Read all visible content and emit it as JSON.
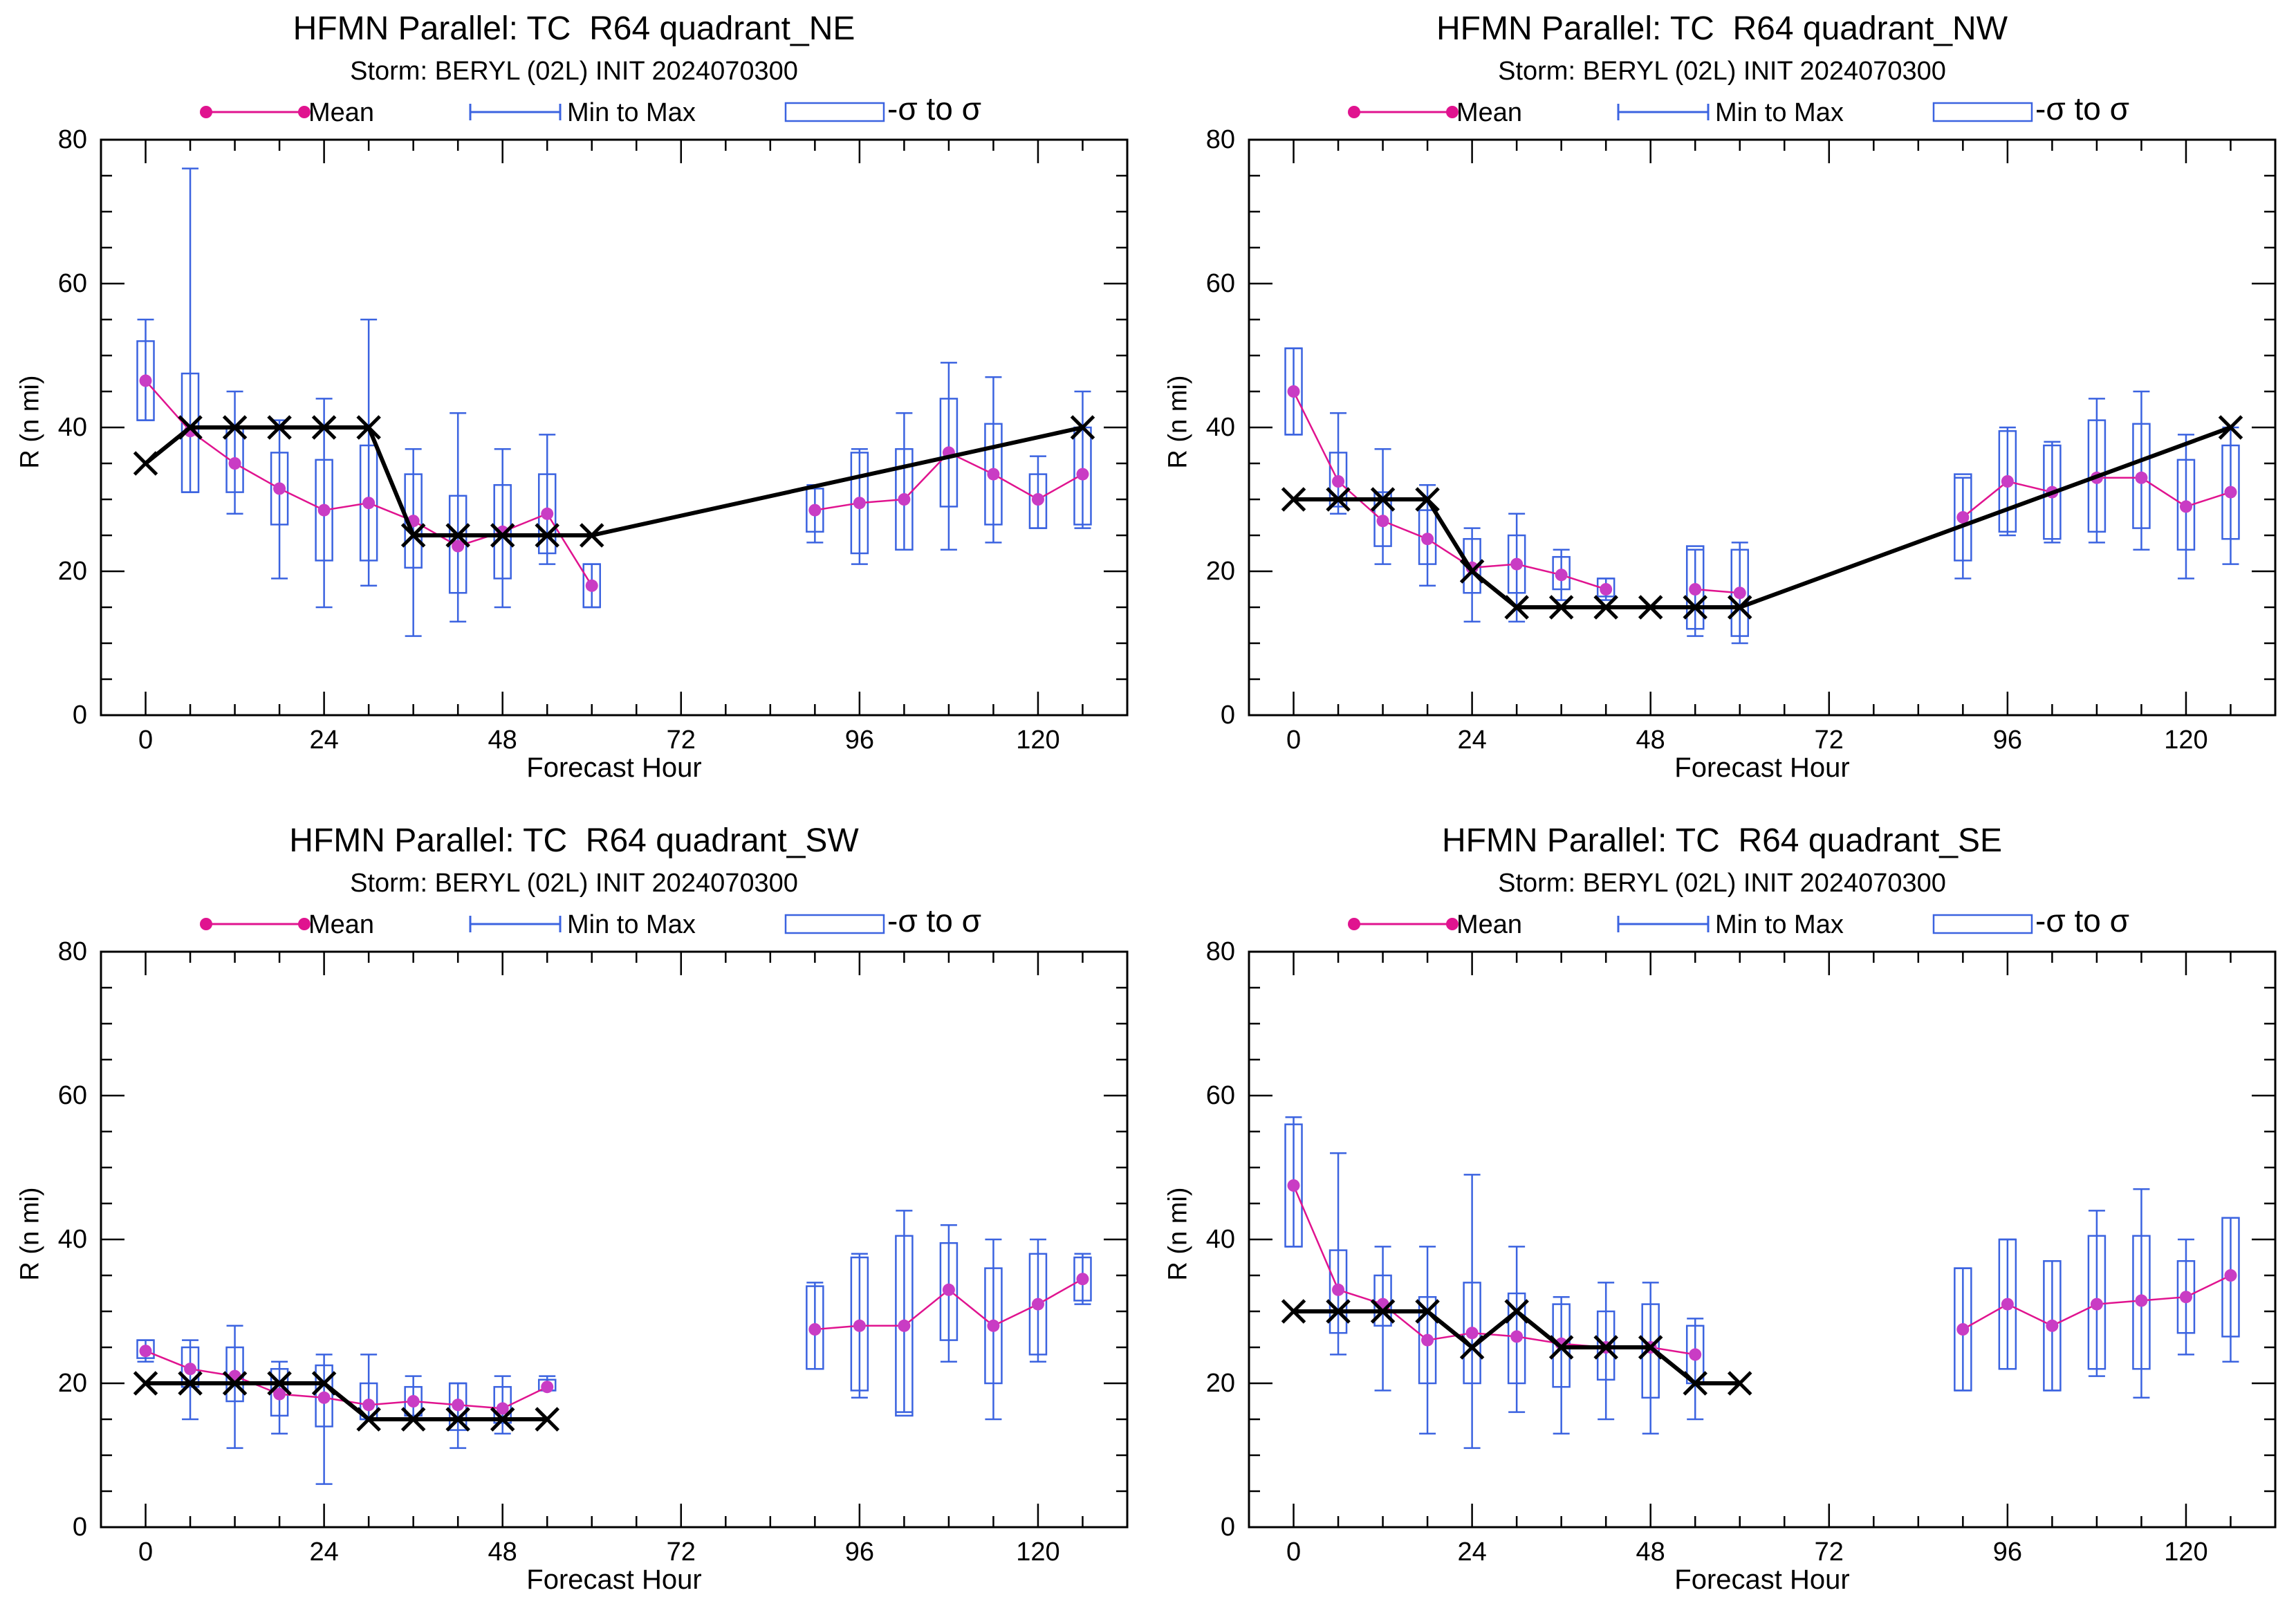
{
  "colors": {
    "mean": "#e0138f",
    "mean_marker": "#c93cc4",
    "range": "#3b63e0",
    "best_track": "#000000",
    "axes": "#000000"
  },
  "legend": {
    "mean_label": "Mean",
    "range_label": "Min to Max",
    "sigma_label": "-σ to σ"
  },
  "chart_data": [
    {
      "id": "ne",
      "type": "line",
      "title": "HFMN Parallel: TC  R64 quadrant_NE",
      "subtitle": "Storm: BERYL (02L) INIT 2024070300",
      "xlabel": "Forecast Hour",
      "ylabel": "R (n mi)",
      "xlim": [
        -6,
        132
      ],
      "ylim": [
        0,
        80
      ],
      "xticks": [
        0,
        24,
        48,
        72,
        96,
        120
      ],
      "yticks": [
        0,
        20,
        40,
        60,
        80
      ],
      "ensemble": [
        {
          "x": 0,
          "mean": 46.5,
          "min": 41,
          "max": 55,
          "sd_lo": 41,
          "sd_hi": 52
        },
        {
          "x": 6,
          "mean": 39.5,
          "min": 31,
          "max": 76,
          "sd_lo": 31,
          "sd_hi": 47.5
        },
        {
          "x": 12,
          "mean": 35,
          "min": 28,
          "max": 45,
          "sd_lo": 31,
          "sd_hi": 40
        },
        {
          "x": 18,
          "mean": 31.5,
          "min": 19,
          "max": 41,
          "sd_lo": 26.5,
          "sd_hi": 36.5
        },
        {
          "x": 24,
          "mean": 28.5,
          "min": 15,
          "max": 44,
          "sd_lo": 21.5,
          "sd_hi": 35.5
        },
        {
          "x": 30,
          "mean": 29.5,
          "min": 18,
          "max": 55,
          "sd_lo": 21.5,
          "sd_hi": 37.5
        },
        {
          "x": 36,
          "mean": 27,
          "min": 11,
          "max": 37,
          "sd_lo": 20.5,
          "sd_hi": 33.5
        },
        {
          "x": 42,
          "mean": 23.5,
          "min": 13,
          "max": 42,
          "sd_lo": 17,
          "sd_hi": 30.5
        },
        {
          "x": 48,
          "mean": 25.5,
          "min": 15,
          "max": 37,
          "sd_lo": 19,
          "sd_hi": 32
        },
        {
          "x": 54,
          "mean": 28,
          "min": 21,
          "max": 39,
          "sd_lo": 22.5,
          "sd_hi": 33.5
        },
        {
          "x": 60,
          "mean": 18,
          "min": 15,
          "max": 21,
          "sd_lo": 15,
          "sd_hi": 21
        },
        {
          "x": 90,
          "mean": 28.5,
          "min": 24,
          "max": 32,
          "sd_lo": 25.5,
          "sd_hi": 31.5
        },
        {
          "x": 96,
          "mean": 29.5,
          "min": 21,
          "max": 37,
          "sd_lo": 22.5,
          "sd_hi": 36.5
        },
        {
          "x": 102,
          "mean": 30,
          "min": 23,
          "max": 42,
          "sd_lo": 23,
          "sd_hi": 37
        },
        {
          "x": 108,
          "mean": 36.5,
          "min": 23,
          "max": 49,
          "sd_lo": 29,
          "sd_hi": 44
        },
        {
          "x": 114,
          "mean": 33.5,
          "min": 24,
          "max": 47,
          "sd_lo": 26.5,
          "sd_hi": 40.5
        },
        {
          "x": 120,
          "mean": 30,
          "min": 26,
          "max": 36,
          "sd_lo": 26,
          "sd_hi": 33.5
        },
        {
          "x": 126,
          "mean": 33.5,
          "min": 26,
          "max": 45,
          "sd_lo": 26.5,
          "sd_hi": 40
        }
      ],
      "best_track": [
        {
          "x": 0,
          "y": 35
        },
        {
          "x": 6,
          "y": 40
        },
        {
          "x": 12,
          "y": 40
        },
        {
          "x": 18,
          "y": 40
        },
        {
          "x": 24,
          "y": 40
        },
        {
          "x": 30,
          "y": 40
        },
        {
          "x": 36,
          "y": 25
        },
        {
          "x": 42,
          "y": 25
        },
        {
          "x": 48,
          "y": 25
        },
        {
          "x": 54,
          "y": 25
        },
        {
          "x": 60,
          "y": 25
        },
        {
          "x": 126,
          "y": 40
        }
      ]
    },
    {
      "id": "nw",
      "type": "line",
      "title": "HFMN Parallel: TC  R64 quadrant_NW",
      "subtitle": "Storm: BERYL (02L) INIT 2024070300",
      "xlabel": "Forecast Hour",
      "ylabel": "R (n mi)",
      "xlim": [
        -6,
        132
      ],
      "ylim": [
        0,
        80
      ],
      "xticks": [
        0,
        24,
        48,
        72,
        96,
        120
      ],
      "yticks": [
        0,
        20,
        40,
        60,
        80
      ],
      "ensemble": [
        {
          "x": 0,
          "mean": 45,
          "min": 39,
          "max": 51,
          "sd_lo": 39,
          "sd_hi": 51
        },
        {
          "x": 6,
          "mean": 32.5,
          "min": 28,
          "max": 42,
          "sd_lo": 29,
          "sd_hi": 36.5
        },
        {
          "x": 12,
          "mean": 27,
          "min": 21,
          "max": 37,
          "sd_lo": 23.5,
          "sd_hi": 31
        },
        {
          "x": 18,
          "mean": 24.5,
          "min": 18,
          "max": 32,
          "sd_lo": 21,
          "sd_hi": 28.5
        },
        {
          "x": 24,
          "mean": 20.5,
          "min": 13,
          "max": 26,
          "sd_lo": 17,
          "sd_hi": 24.5
        },
        {
          "x": 30,
          "mean": 21,
          "min": 13,
          "max": 28,
          "sd_lo": 17,
          "sd_hi": 25
        },
        {
          "x": 36,
          "mean": 19.5,
          "min": 16,
          "max": 23,
          "sd_lo": 17.5,
          "sd_hi": 22
        },
        {
          "x": 42,
          "mean": 17.5,
          "min": 16,
          "max": 19,
          "sd_lo": 16.5,
          "sd_hi": 19
        },
        {
          "x": 54,
          "mean": 17.5,
          "min": 11,
          "max": 23,
          "sd_lo": 12,
          "sd_hi": 23.5
        },
        {
          "x": 60,
          "mean": 17,
          "min": 10,
          "max": 24,
          "sd_lo": 11,
          "sd_hi": 23
        },
        {
          "x": 90,
          "mean": 27.5,
          "min": 19,
          "max": 33,
          "sd_lo": 21.5,
          "sd_hi": 33.5
        },
        {
          "x": 96,
          "mean": 32.5,
          "min": 25,
          "max": 40,
          "sd_lo": 25.5,
          "sd_hi": 39.5
        },
        {
          "x": 102,
          "mean": 31,
          "min": 24,
          "max": 38,
          "sd_lo": 24.5,
          "sd_hi": 37.5
        },
        {
          "x": 108,
          "mean": 33,
          "min": 24,
          "max": 44,
          "sd_lo": 25.5,
          "sd_hi": 41
        },
        {
          "x": 114,
          "mean": 33,
          "min": 23,
          "max": 45,
          "sd_lo": 26,
          "sd_hi": 40.5
        },
        {
          "x": 120,
          "mean": 29,
          "min": 19,
          "max": 39,
          "sd_lo": 23,
          "sd_hi": 35.5
        },
        {
          "x": 126,
          "mean": 31,
          "min": 21,
          "max": 40,
          "sd_lo": 24.5,
          "sd_hi": 37.5
        }
      ],
      "best_track": [
        {
          "x": 0,
          "y": 30
        },
        {
          "x": 6,
          "y": 30
        },
        {
          "x": 12,
          "y": 30
        },
        {
          "x": 18,
          "y": 30
        },
        {
          "x": 24,
          "y": 20
        },
        {
          "x": 30,
          "y": 15
        },
        {
          "x": 36,
          "y": 15
        },
        {
          "x": 42,
          "y": 15
        },
        {
          "x": 48,
          "y": 15
        },
        {
          "x": 54,
          "y": 15
        },
        {
          "x": 60,
          "y": 15
        },
        {
          "x": 126,
          "y": 40
        }
      ]
    },
    {
      "id": "sw",
      "type": "line",
      "title": "HFMN Parallel: TC  R64 quadrant_SW",
      "subtitle": "Storm: BERYL (02L) INIT 2024070300",
      "xlabel": "Forecast Hour",
      "ylabel": "R (n mi)",
      "xlim": [
        -6,
        132
      ],
      "ylim": [
        0,
        80
      ],
      "xticks": [
        0,
        24,
        48,
        72,
        96,
        120
      ],
      "yticks": [
        0,
        20,
        40,
        60,
        80
      ],
      "ensemble": [
        {
          "x": 0,
          "mean": 24.5,
          "min": 23,
          "max": 26,
          "sd_lo": 23.5,
          "sd_hi": 26
        },
        {
          "x": 6,
          "mean": 22,
          "min": 15,
          "max": 26,
          "sd_lo": 19.5,
          "sd_hi": 25
        },
        {
          "x": 12,
          "mean": 21,
          "min": 11,
          "max": 28,
          "sd_lo": 17.5,
          "sd_hi": 25
        },
        {
          "x": 18,
          "mean": 18.5,
          "min": 13,
          "max": 23,
          "sd_lo": 15.5,
          "sd_hi": 22
        },
        {
          "x": 24,
          "mean": 18,
          "min": 6,
          "max": 24,
          "sd_lo": 14,
          "sd_hi": 22.5
        },
        {
          "x": 30,
          "mean": 17,
          "min": 15,
          "max": 24,
          "sd_lo": 15,
          "sd_hi": 20
        },
        {
          "x": 36,
          "mean": 17.5,
          "min": 15,
          "max": 21,
          "sd_lo": 15.5,
          "sd_hi": 19.5
        },
        {
          "x": 42,
          "mean": 17,
          "min": 11,
          "max": 20,
          "sd_lo": 13.5,
          "sd_hi": 20
        },
        {
          "x": 48,
          "mean": 16.5,
          "min": 13,
          "max": 21,
          "sd_lo": 14.5,
          "sd_hi": 19.5
        },
        {
          "x": 54,
          "mean": 19.5,
          "min": 19,
          "max": 21,
          "sd_lo": 19,
          "sd_hi": 20.5
        },
        {
          "x": 90,
          "mean": 27.5,
          "min": 22,
          "max": 34,
          "sd_lo": 22,
          "sd_hi": 33.5
        },
        {
          "x": 96,
          "mean": 28,
          "min": 18,
          "max": 38,
          "sd_lo": 19,
          "sd_hi": 37.5
        },
        {
          "x": 102,
          "mean": 28,
          "min": 16,
          "max": 44,
          "sd_lo": 15.5,
          "sd_hi": 40.5
        },
        {
          "x": 108,
          "mean": 33,
          "min": 23,
          "max": 42,
          "sd_lo": 26,
          "sd_hi": 39.5
        },
        {
          "x": 114,
          "mean": 28,
          "min": 15,
          "max": 40,
          "sd_lo": 20,
          "sd_hi": 36
        },
        {
          "x": 120,
          "mean": 31,
          "min": 23,
          "max": 40,
          "sd_lo": 24,
          "sd_hi": 38
        },
        {
          "x": 126,
          "mean": 34.5,
          "min": 31,
          "max": 38,
          "sd_lo": 31.5,
          "sd_hi": 37.5
        }
      ],
      "best_track": [
        {
          "x": 0,
          "y": 20
        },
        {
          "x": 6,
          "y": 20
        },
        {
          "x": 12,
          "y": 20
        },
        {
          "x": 18,
          "y": 20
        },
        {
          "x": 24,
          "y": 20
        },
        {
          "x": 30,
          "y": 15
        },
        {
          "x": 36,
          "y": 15
        },
        {
          "x": 42,
          "y": 15
        },
        {
          "x": 48,
          "y": 15
        },
        {
          "x": 54,
          "y": 15
        }
      ]
    },
    {
      "id": "se",
      "type": "line",
      "title": "HFMN Parallel: TC  R64 quadrant_SE",
      "subtitle": "Storm: BERYL (02L) INIT 2024070300",
      "xlabel": "Forecast Hour",
      "ylabel": "R (n mi)",
      "xlim": [
        -6,
        132
      ],
      "ylim": [
        0,
        80
      ],
      "xticks": [
        0,
        24,
        48,
        72,
        96,
        120
      ],
      "yticks": [
        0,
        20,
        40,
        60,
        80
      ],
      "ensemble": [
        {
          "x": 0,
          "mean": 47.5,
          "min": 39,
          "max": 57,
          "sd_lo": 39,
          "sd_hi": 56
        },
        {
          "x": 6,
          "mean": 33,
          "min": 24,
          "max": 52,
          "sd_lo": 27,
          "sd_hi": 38.5
        },
        {
          "x": 12,
          "mean": 31,
          "min": 19,
          "max": 39,
          "sd_lo": 28,
          "sd_hi": 35
        },
        {
          "x": 18,
          "mean": 26,
          "min": 13,
          "max": 39,
          "sd_lo": 20,
          "sd_hi": 32
        },
        {
          "x": 24,
          "mean": 27,
          "min": 11,
          "max": 49,
          "sd_lo": 20,
          "sd_hi": 34
        },
        {
          "x": 30,
          "mean": 26.5,
          "min": 16,
          "max": 39,
          "sd_lo": 20,
          "sd_hi": 32.5
        },
        {
          "x": 36,
          "mean": 25.5,
          "min": 13,
          "max": 32,
          "sd_lo": 19.5,
          "sd_hi": 31
        },
        {
          "x": 42,
          "mean": 25,
          "min": 15,
          "max": 34,
          "sd_lo": 20.5,
          "sd_hi": 30
        },
        {
          "x": 48,
          "mean": 25,
          "min": 13,
          "max": 34,
          "sd_lo": 18,
          "sd_hi": 31
        },
        {
          "x": 54,
          "mean": 24,
          "min": 15,
          "max": 29,
          "sd_lo": 20,
          "sd_hi": 28
        },
        {
          "x": 90,
          "mean": 27.5,
          "min": 19,
          "max": 36,
          "sd_lo": 19,
          "sd_hi": 36
        },
        {
          "x": 96,
          "mean": 31,
          "min": 22,
          "max": 40,
          "sd_lo": 22,
          "sd_hi": 40
        },
        {
          "x": 102,
          "mean": 28,
          "min": 19,
          "max": 37,
          "sd_lo": 19,
          "sd_hi": 37
        },
        {
          "x": 108,
          "mean": 31,
          "min": 21,
          "max": 44,
          "sd_lo": 22,
          "sd_hi": 40.5
        },
        {
          "x": 114,
          "mean": 31.5,
          "min": 18,
          "max": 47,
          "sd_lo": 22,
          "sd_hi": 40.5
        },
        {
          "x": 120,
          "mean": 32,
          "min": 24,
          "max": 40,
          "sd_lo": 27,
          "sd_hi": 37
        },
        {
          "x": 126,
          "mean": 35,
          "min": 23,
          "max": 43,
          "sd_lo": 26.5,
          "sd_hi": 43
        }
      ],
      "best_track": [
        {
          "x": 0,
          "y": 30
        },
        {
          "x": 6,
          "y": 30
        },
        {
          "x": 12,
          "y": 30
        },
        {
          "x": 18,
          "y": 30
        },
        {
          "x": 24,
          "y": 25
        },
        {
          "x": 30,
          "y": 30
        },
        {
          "x": 36,
          "y": 25
        },
        {
          "x": 42,
          "y": 25
        },
        {
          "x": 48,
          "y": 25
        },
        {
          "x": 54,
          "y": 20
        },
        {
          "x": 60,
          "y": 20
        }
      ]
    }
  ]
}
